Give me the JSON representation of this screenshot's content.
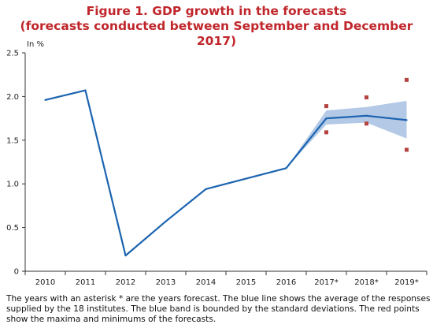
{
  "title_line1": "Figure 1. GDP growth in the forecasts",
  "title_line2": "(forecasts conducted between September and December 2017)",
  "note": "The years with an asterisk * are the years forecast. The blue line shows the average of the responses supplied by the 18 institutes. The blue band is bounded by the standard deviations. The red points show the maxima and minimums of the forecasts.",
  "colors": {
    "title": "#c0262b",
    "line": "#1b64b0",
    "band": "#b3c9e6",
    "points": "#b5433f"
  },
  "chart_data": {
    "type": "line",
    "ylabel": "In %",
    "ylim": [
      0,
      2.5
    ],
    "yticks": [
      "0",
      "0.5",
      "1.0",
      "1.5",
      "2.0",
      "2.5"
    ],
    "categories": [
      "2010",
      "2011",
      "2012",
      "2013",
      "2014",
      "2015",
      "2016",
      "2017*",
      "2018*",
      "2019*"
    ],
    "series": [
      {
        "values": [
          1.96,
          2.07,
          0.18,
          0.57,
          0.94,
          1.06,
          1.18,
          1.75,
          1.78,
          1.73
        ]
      }
    ],
    "band": {
      "categories": [
        "2016",
        "2017*",
        "2018*",
        "2019*"
      ],
      "upper": [
        1.18,
        1.84,
        1.88,
        1.95
      ],
      "lower": [
        1.18,
        1.68,
        1.7,
        1.52
      ]
    },
    "max": {
      "categories": [
        "2017*",
        "2018*",
        "2019*"
      ],
      "values": [
        1.89,
        1.99,
        2.19
      ]
    },
    "min": {
      "categories": [
        "2017*",
        "2018*",
        "2019*"
      ],
      "values": [
        1.59,
        1.69,
        1.39
      ]
    },
    "grid": false
  }
}
